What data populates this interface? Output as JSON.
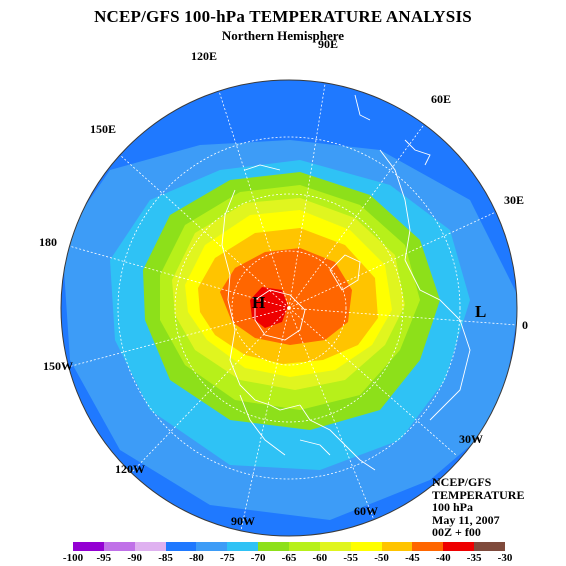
{
  "header": {
    "title": "NCEP/GFS 100-hPa TEMPERATURE ANALYSIS",
    "subtitle": "Northern Hemisphere"
  },
  "map": {
    "projection": "north polar stereographic",
    "longitude_labels": [
      "90E",
      "60E",
      "120E",
      "150E",
      "30E",
      "180",
      "0",
      "150W",
      "30W",
      "120W",
      "90W",
      "60W"
    ],
    "systems": [
      {
        "symbol": "H",
        "meaning": "warm center"
      },
      {
        "symbol": "L",
        "meaning": "cold center"
      }
    ],
    "field": "100-hPa temperature (°C)"
  },
  "info_block": {
    "lines": [
      "NCEP/GFS",
      "TEMPERATURE",
      "100 hPa",
      "May 11, 2007",
      "00Z + f00"
    ]
  },
  "legend": {
    "ticks": [
      "-100",
      "-95",
      "-90",
      "-85",
      "-80",
      "-75",
      "-70",
      "-65",
      "-60",
      "-55",
      "-50",
      "-45",
      "-40",
      "-35",
      "-30"
    ],
    "colors": [
      "#9400d3",
      "#c071e8",
      "#dfb1f0",
      "#1f79ff",
      "#3d9cf7",
      "#2fc2f5",
      "#8de01a",
      "#b7f01a",
      "#e0f51f",
      "#ffff00",
      "#ffc400",
      "#ff6600",
      "#ee0000",
      "#7f4a3c"
    ]
  }
}
